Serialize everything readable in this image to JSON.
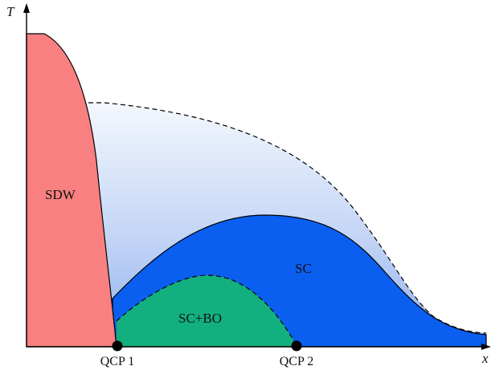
{
  "diagram": {
    "axes": {
      "y_label": "T",
      "x_label": "x"
    },
    "regions": [
      {
        "id": "sdw",
        "label": "SDW",
        "color": "#f88080"
      },
      {
        "id": "sc",
        "label": "SC",
        "color": "#0a5ff0"
      },
      {
        "id": "sc_bo",
        "label": "SC+BO",
        "color": "#12b07e"
      },
      {
        "id": "pseudogap",
        "label": "",
        "color": "#c9d9f7"
      }
    ],
    "critical_points": [
      {
        "label": "QCP 1"
      },
      {
        "label": "QCP 2"
      }
    ]
  }
}
